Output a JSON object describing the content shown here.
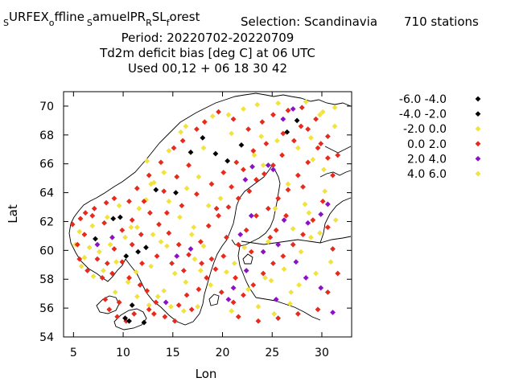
{
  "title": {
    "line1": "URFEX",
    "line1_sub_s1": "S",
    "line1_offline": "ffline",
    "line1_sub_o": "o",
    "line1_sub_s2": "S",
    "line1_amuelpr": "amuelPR",
    "line1_sub_r": "R",
    "line1_slf": "SL",
    "line1_sub_f": "f",
    "line1_orest": "orest",
    "selection": "Selection: Scandinavia",
    "stations": "710 stations",
    "line2": "Period: 20220702-20220709",
    "line3": "Td2m deficit bias [deg C] at  06 UTC",
    "line4": "Used  00,12  + 06 18 30 42"
  },
  "chart_data": {
    "type": "scatter",
    "xlabel": "Lon",
    "ylabel": "Lat",
    "xlim": [
      4,
      33
    ],
    "ylim": [
      54,
      71
    ],
    "xticks": [
      5,
      10,
      15,
      20,
      25,
      30
    ],
    "yticks": [
      54,
      56,
      58,
      60,
      62,
      64,
      66,
      68,
      70
    ],
    "grid": false,
    "legend_position": "right",
    "series": [
      {
        "name": "-6.0 -4.0",
        "color": "#000000",
        "points": [
          [
            27.5,
            69.0
          ],
          [
            26.5,
            68.2
          ]
        ]
      },
      {
        "name": "-4.0 -2.0",
        "color": "#000000",
        "points": [
          [
            18.0,
            67.8
          ],
          [
            16.8,
            66.8
          ],
          [
            19.3,
            66.7
          ],
          [
            21.9,
            67.3
          ],
          [
            20.5,
            66.2
          ],
          [
            15.3,
            64.0
          ],
          [
            13.3,
            64.2
          ],
          [
            9.0,
            62.2
          ],
          [
            9.7,
            62.3
          ],
          [
            7.2,
            60.8
          ],
          [
            12.3,
            60.2
          ],
          [
            11.5,
            59.9
          ],
          [
            10.3,
            59.6
          ],
          [
            10.9,
            56.2
          ],
          [
            12.1,
            55.0
          ],
          [
            10.2,
            55.3
          ],
          [
            10.6,
            55.1
          ]
        ]
      },
      {
        "name": "-2.0 0.0",
        "color": "#f2e33c",
        "points": [
          [
            5.6,
            61.3
          ],
          [
            5.2,
            60.4
          ],
          [
            6.1,
            59.5
          ],
          [
            5.8,
            58.9
          ],
          [
            7.0,
            58.2
          ],
          [
            8.0,
            58.6
          ],
          [
            6.6,
            60.2
          ],
          [
            7.6,
            59.9
          ],
          [
            8.7,
            60.4
          ],
          [
            9.3,
            59.2
          ],
          [
            10.2,
            60.9
          ],
          [
            10.8,
            61.6
          ],
          [
            11.6,
            62.9
          ],
          [
            12.3,
            63.5
          ],
          [
            13.1,
            64.7
          ],
          [
            14.1,
            65.4
          ],
          [
            12.4,
            66.2
          ],
          [
            14.6,
            66.9
          ],
          [
            15.8,
            68.2
          ],
          [
            16.3,
            68.6
          ],
          [
            19.0,
            69.3
          ],
          [
            20.6,
            69.4
          ],
          [
            22.1,
            69.8
          ],
          [
            23.5,
            70.1
          ],
          [
            25.6,
            70.2
          ],
          [
            28.4,
            70.3
          ],
          [
            30.1,
            69.6
          ],
          [
            31.3,
            68.6
          ],
          [
            28.9,
            67.8
          ],
          [
            27.6,
            67.1
          ],
          [
            29.1,
            66.3
          ],
          [
            30.2,
            65.6
          ],
          [
            24.1,
            65.9
          ],
          [
            23.2,
            66.6
          ],
          [
            25.5,
            67.6
          ],
          [
            26.6,
            64.6
          ],
          [
            25.3,
            62.9
          ],
          [
            28.7,
            62.6
          ],
          [
            30.3,
            64.1
          ],
          [
            29.8,
            61.2
          ],
          [
            27.9,
            59.9
          ],
          [
            26.2,
            58.7
          ],
          [
            24.3,
            58.1
          ],
          [
            22.6,
            57.3
          ],
          [
            23.6,
            56.1
          ],
          [
            25.2,
            55.6
          ],
          [
            26.8,
            56.3
          ],
          [
            27.7,
            57.6
          ],
          [
            21.2,
            59.1
          ],
          [
            20.4,
            58.5
          ],
          [
            18.8,
            57.6
          ],
          [
            17.5,
            56.1
          ],
          [
            16.3,
            57.8
          ],
          [
            15.2,
            58.4
          ],
          [
            14.1,
            57.2
          ],
          [
            13.5,
            56.8
          ],
          [
            12.6,
            56.2
          ],
          [
            15.7,
            62.3
          ],
          [
            17.1,
            61.6
          ],
          [
            18.6,
            63.1
          ],
          [
            19.8,
            63.6
          ],
          [
            16.4,
            64.3
          ],
          [
            17.6,
            65.1
          ],
          [
            14.4,
            60.3
          ],
          [
            13.0,
            61.1
          ],
          [
            9.6,
            63.1
          ],
          [
            8.4,
            62.3
          ],
          [
            10.5,
            57.8
          ],
          [
            11.3,
            58.5
          ],
          [
            12.8,
            58.9
          ],
          [
            17.2,
            59.4
          ],
          [
            18.1,
            60.3
          ],
          [
            16.1,
            55.8
          ],
          [
            14.8,
            56.1
          ],
          [
            11.4,
            56.8
          ],
          [
            9.2,
            57.1
          ],
          [
            6.9,
            61.7
          ],
          [
            20.9,
            55.8
          ],
          [
            22.2,
            60.2
          ],
          [
            24.6,
            60.6
          ],
          [
            27.1,
            61.5
          ],
          [
            28.3,
            63.2
          ],
          [
            31.4,
            62.1
          ],
          [
            29.4,
            58.4
          ],
          [
            30.9,
            59.2
          ]
        ]
      },
      {
        "name": "0.0 2.0",
        "color": "#e8291b",
        "points": [
          [
            4.9,
            61.8
          ],
          [
            5.7,
            62.2
          ],
          [
            6.2,
            62.6
          ],
          [
            7.1,
            62.9
          ],
          [
            8.3,
            63.3
          ],
          [
            9.1,
            63.6
          ],
          [
            10.6,
            63.4
          ],
          [
            11.4,
            64.3
          ],
          [
            12.6,
            65.2
          ],
          [
            13.8,
            66.1
          ],
          [
            15.1,
            67.1
          ],
          [
            16.0,
            67.6
          ],
          [
            17.4,
            68.4
          ],
          [
            18.2,
            68.9
          ],
          [
            19.6,
            69.6
          ],
          [
            21.1,
            69.1
          ],
          [
            22.6,
            68.4
          ],
          [
            24.0,
            68.9
          ],
          [
            25.1,
            69.4
          ],
          [
            26.6,
            69.7
          ],
          [
            28.0,
            69.9
          ],
          [
            29.4,
            69.1
          ],
          [
            28.6,
            68.4
          ],
          [
            27.2,
            67.6
          ],
          [
            26.0,
            66.6
          ],
          [
            25.1,
            65.9
          ],
          [
            24.2,
            65.3
          ],
          [
            23.4,
            64.9
          ],
          [
            22.7,
            64.1
          ],
          [
            21.6,
            63.6
          ],
          [
            20.6,
            63.0
          ],
          [
            19.6,
            62.4
          ],
          [
            18.6,
            61.7
          ],
          [
            17.8,
            60.6
          ],
          [
            18.9,
            59.4
          ],
          [
            16.6,
            59.7
          ],
          [
            15.6,
            60.4
          ],
          [
            14.6,
            61.2
          ],
          [
            13.6,
            61.8
          ],
          [
            12.7,
            62.6
          ],
          [
            11.8,
            61.1
          ],
          [
            10.9,
            60.4
          ],
          [
            9.9,
            59.2
          ],
          [
            8.9,
            58.4
          ],
          [
            7.9,
            58.1
          ],
          [
            6.4,
            58.6
          ],
          [
            5.6,
            59.4
          ],
          [
            10.6,
            58.1
          ],
          [
            11.7,
            57.6
          ],
          [
            12.4,
            57.2
          ],
          [
            13.3,
            56.4
          ],
          [
            13.1,
            55.6
          ],
          [
            14.2,
            55.4
          ],
          [
            15.6,
            56.2
          ],
          [
            16.4,
            56.9
          ],
          [
            17.6,
            57.3
          ],
          [
            18.4,
            58.1
          ],
          [
            19.3,
            58.7
          ],
          [
            20.1,
            59.6
          ],
          [
            21.6,
            60.4
          ],
          [
            22.4,
            61.4
          ],
          [
            23.4,
            62.4
          ],
          [
            24.6,
            62.9
          ],
          [
            25.6,
            63.6
          ],
          [
            26.6,
            64.2
          ],
          [
            27.6,
            65.2
          ],
          [
            28.6,
            66.1
          ],
          [
            29.6,
            67.1
          ],
          [
            30.6,
            67.9
          ],
          [
            31.6,
            66.6
          ],
          [
            31.1,
            65.2
          ],
          [
            30.1,
            63.4
          ],
          [
            29.1,
            62.1
          ],
          [
            28.1,
            61.1
          ],
          [
            27.1,
            60.4
          ],
          [
            26.1,
            59.6
          ],
          [
            25.1,
            59.1
          ],
          [
            24.1,
            58.4
          ],
          [
            23.1,
            57.6
          ],
          [
            22.1,
            56.9
          ],
          [
            21.1,
            56.4
          ],
          [
            21.6,
            55.4
          ],
          [
            23.6,
            55.1
          ],
          [
            25.6,
            55.3
          ],
          [
            27.6,
            55.6
          ],
          [
            29.6,
            55.9
          ],
          [
            30.6,
            57.1
          ],
          [
            31.6,
            58.4
          ],
          [
            31.1,
            60.1
          ],
          [
            30.6,
            61.6
          ],
          [
            24.8,
            60.9
          ],
          [
            22.9,
            59.9
          ],
          [
            21.3,
            58.1
          ],
          [
            19.9,
            57.1
          ],
          [
            20.4,
            60.9
          ],
          [
            19.4,
            62.9
          ],
          [
            20.9,
            64.4
          ],
          [
            22.1,
            65.6
          ],
          [
            23.1,
            66.9
          ],
          [
            24.4,
            67.4
          ],
          [
            26.1,
            68.1
          ],
          [
            27.9,
            68.6
          ],
          [
            29.9,
            67.4
          ],
          [
            30.6,
            66.4
          ],
          [
            28.1,
            64.4
          ],
          [
            26.4,
            62.4
          ],
          [
            25.4,
            61.4
          ],
          [
            9.4,
            55.4
          ],
          [
            8.6,
            55.9
          ],
          [
            8.2,
            56.6
          ],
          [
            9.6,
            56.4
          ],
          [
            10.3,
            55.1
          ],
          [
            11.1,
            55.6
          ],
          [
            12.6,
            55.9
          ],
          [
            15.2,
            55.1
          ],
          [
            16.9,
            55.9
          ],
          [
            11.9,
            59.1
          ],
          [
            13.4,
            59.6
          ],
          [
            14.9,
            59.1
          ],
          [
            16.1,
            58.6
          ],
          [
            17.9,
            59.1
          ],
          [
            14.4,
            62.6
          ],
          [
            15.9,
            63.1
          ],
          [
            17.4,
            63.9
          ],
          [
            18.9,
            64.6
          ],
          [
            20.1,
            65.4
          ],
          [
            21.4,
            66.1
          ],
          [
            16.6,
            65.9
          ],
          [
            15.4,
            65.1
          ],
          [
            14.1,
            64.1
          ],
          [
            12.1,
            63.4
          ],
          [
            10.9,
            62.1
          ],
          [
            9.9,
            61.4
          ],
          [
            8.1,
            61.9
          ],
          [
            6.9,
            62.4
          ],
          [
            7.4,
            59.4
          ],
          [
            8.4,
            59.1
          ],
          [
            9.1,
            60.1
          ],
          [
            5.4,
            60.4
          ],
          [
            6.1,
            61.1
          ]
        ]
      },
      {
        "name": "2.0 4.0",
        "color": "#8b10c8",
        "points": [
          [
            23.0,
            65.8
          ],
          [
            24.6,
            65.9
          ],
          [
            25.1,
            65.6
          ],
          [
            22.3,
            64.9
          ],
          [
            26.1,
            69.1
          ],
          [
            27.1,
            69.8
          ],
          [
            30.6,
            63.2
          ],
          [
            29.9,
            62.5
          ],
          [
            28.6,
            61.9
          ],
          [
            26.2,
            62.1
          ],
          [
            25.6,
            60.4
          ],
          [
            24.1,
            59.9
          ],
          [
            22.4,
            58.6
          ],
          [
            21.1,
            57.4
          ],
          [
            20.6,
            56.6
          ],
          [
            27.4,
            59.2
          ],
          [
            28.4,
            58.1
          ],
          [
            29.9,
            57.4
          ],
          [
            31.1,
            55.7
          ],
          [
            25.4,
            56.6
          ],
          [
            15.4,
            59.6
          ],
          [
            16.8,
            60.1
          ],
          [
            14.3,
            56.4
          ],
          [
            7.4,
            60.4
          ],
          [
            8.9,
            60.9
          ],
          [
            22.9,
            62.4
          ],
          [
            21.8,
            61.1
          ]
        ]
      },
      {
        "name": "4.0 6.0",
        "color": "#f2e33c",
        "points": [
          [
            31.3,
            69.9
          ],
          [
            29.8,
            69.4
          ],
          [
            28.9,
            60.9
          ],
          [
            26.9,
            57.1
          ],
          [
            24.9,
            57.9
          ],
          [
            17.8,
            58.6
          ],
          [
            16.9,
            61.1
          ],
          [
            13.8,
            60.6
          ],
          [
            11.4,
            61.6
          ],
          [
            12.8,
            64.6
          ],
          [
            14.6,
            63.4
          ],
          [
            18.1,
            67.1
          ],
          [
            20.9,
            68.1
          ],
          [
            23.9,
            67.9
          ]
        ]
      }
    ]
  }
}
